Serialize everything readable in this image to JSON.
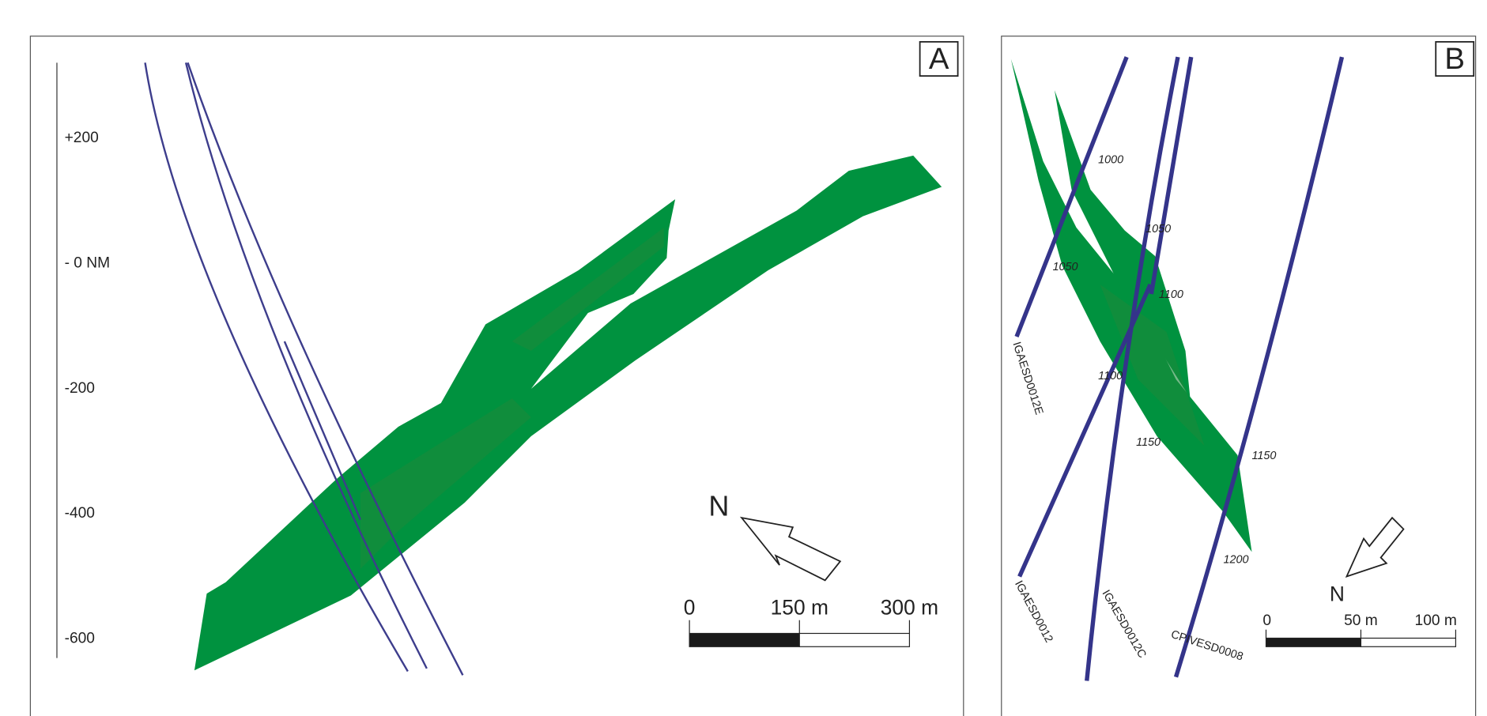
{
  "panel_a": {
    "label": "A",
    "elevation_labels": [
      "+200",
      "- 0 NM",
      "-200",
      "-400",
      "-600"
    ],
    "north": "N",
    "scale_labels": [
      "0",
      "150 m",
      "300 m"
    ]
  },
  "panel_b": {
    "label": "B",
    "drillholes": [
      "IGAESD0012E",
      "IGAESD0012",
      "IGAESD0012C",
      "CPIVESD0008"
    ],
    "depth_labels": [
      "1000",
      "1050",
      "1050",
      "1100",
      "1100",
      "1150",
      "1150",
      "1200"
    ],
    "north": "N",
    "scale_labels": [
      "0",
      "50 m",
      "100 m"
    ]
  }
}
